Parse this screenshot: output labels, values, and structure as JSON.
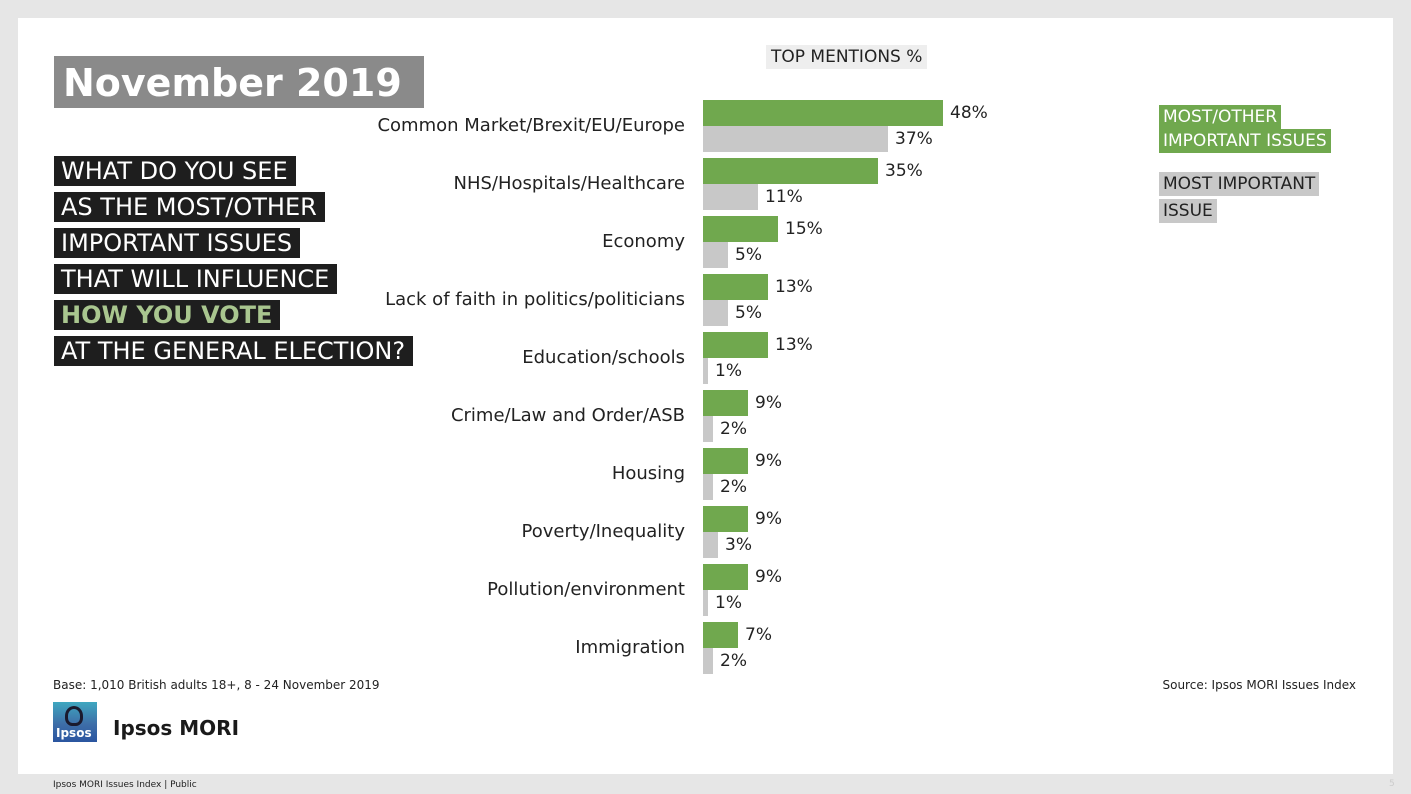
{
  "title": "November 2019",
  "question_lines": [
    "WHAT DO YOU SEE",
    "AS THE MOST/OTHER",
    "IMPORTANT ISSUES",
    "THAT WILL INFLUENCE",
    "HOW YOU VOTE",
    "AT THE GENERAL ELECTION?"
  ],
  "top_mentions_label": "TOP MENTIONS %",
  "legend": {
    "green_line1": "MOST/OTHER",
    "green_line2": "IMPORTANT ISSUES",
    "gray_line1": "MOST IMPORTANT",
    "gray_line2": "ISSUE"
  },
  "colors": {
    "green": "#70a84e",
    "gray": "#c8c8c8",
    "title_bg": "#8a8a8a",
    "question_bg": "#1e1e1e",
    "accent_text": "#a9c68f"
  },
  "chart_data": {
    "type": "bar",
    "orientation": "horizontal",
    "categories": [
      "Common Market/Brexit/EU/Europe",
      "NHS/Hospitals/Healthcare",
      "Economy",
      "Lack of faith in politics/politicians",
      "Education/schools",
      "Crime/Law and Order/ASB",
      "Housing",
      "Poverty/Inequality",
      "Pollution/environment",
      "Immigration"
    ],
    "series": [
      {
        "name": "MOST/OTHER IMPORTANT ISSUES",
        "values": [
          48,
          35,
          15,
          13,
          13,
          9,
          9,
          9,
          9,
          7
        ]
      },
      {
        "name": "MOST IMPORTANT ISSUE",
        "values": [
          37,
          11,
          5,
          5,
          1,
          2,
          2,
          3,
          1,
          2
        ]
      }
    ],
    "value_suffix": "%",
    "title": "TOP MENTIONS %",
    "legend_position": "top-right",
    "grid": false
  },
  "footer": {
    "base": "Base: 1,010 British adults 18+, 8 - 24 November 2019",
    "source": "Source: Ipsos MORI Issues Index",
    "bottom_left": "Ipsos  MORI Issues Index | Public",
    "page_number": "5"
  },
  "logo": {
    "icon": "ipsos-logo-icon",
    "text": "Ipsos",
    "brand_name": "Ipsos MORI"
  }
}
